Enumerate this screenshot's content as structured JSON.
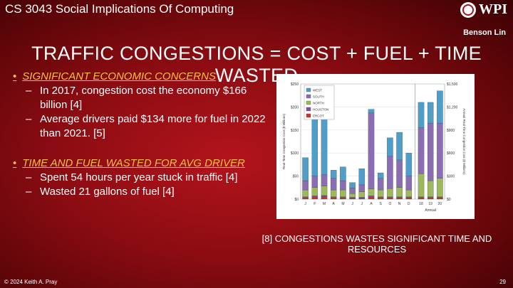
{
  "header": {
    "course": "CS 3043 Social Implications Of Computing",
    "logo_text": "WPI",
    "author": "Benson Lin"
  },
  "title": "TRAFFIC CONGESTIONS = COST + FUEL + TIME WASTED",
  "sections": [
    {
      "heading": "SIGNIFICANT ECONOMIC CONCERNS",
      "items": [
        "In 2017, congestion cost the economy $166 billion [4]",
        "Average drivers paid $134 more for fuel in 2022 than 2021. [5]"
      ]
    },
    {
      "heading": "TIME AND FUEL WASTED FOR AVG DRIVER",
      "items": [
        "Spent 54 hours per year stuck in traffic [4]",
        "Wasted 21 gallons of fuel [4]"
      ]
    }
  ],
  "caption": "[8] CONGESTIONS WASTES SIGNIFICANT TIME AND RESOURCES",
  "footer": {
    "copyright": "© 2024 Keith A. Pray",
    "page": "29"
  },
  "chart_data": {
    "type": "bar",
    "stacked": true,
    "categories": [
      "J",
      "F",
      "M",
      "A",
      "M",
      "J",
      "J",
      "A",
      "S",
      "O",
      "N",
      "D",
      "18",
      "19",
      "20"
    ],
    "xgroup_label": "Annual",
    "ylabel": "Real-Time Congestion Cost ($ Millions)",
    "y2label": "Annual Real-Time Congestion Cost ($ Millions)",
    "ylim": [
      0,
      250
    ],
    "yticks": [
      "$0",
      "$50",
      "$100",
      "$150",
      "$200",
      "$250"
    ],
    "y2lim": [
      0,
      1500
    ],
    "y2ticks": [
      "$0",
      "$300",
      "$600",
      "$900",
      "$1,200",
      "$1,500"
    ],
    "legend_position": "top-left",
    "series": [
      {
        "name": "ERCOT",
        "color": "#c0392b",
        "values": [
          3,
          4,
          5,
          3,
          3,
          2,
          2,
          4,
          3,
          3,
          3,
          3,
          3,
          3,
          3
        ]
      },
      {
        "name": "HOUSTON",
        "color": "#8e44ad",
        "values": [
          2,
          3,
          3,
          2,
          2,
          2,
          2,
          3,
          2,
          2,
          2,
          2,
          2,
          2,
          2
        ]
      },
      {
        "name": "NORTH",
        "color": "#9cba5b",
        "values": [
          15,
          18,
          20,
          15,
          15,
          8,
          12,
          15,
          15,
          18,
          20,
          15,
          50,
          35,
          40
        ]
      },
      {
        "name": "SOUTH",
        "color": "#8b6db3",
        "values": [
          20,
          25,
          25,
          25,
          20,
          12,
          15,
          165,
          25,
          70,
          60,
          30,
          100,
          125,
          120
        ]
      },
      {
        "name": "WEST",
        "color": "#4f9ec9",
        "values": [
          50,
          168,
          168,
          18,
          30,
          12,
          35,
          8,
          12,
          40,
          60,
          50,
          55,
          45,
          70
        ]
      }
    ],
    "series_order_top_to_bottom": [
      "WEST",
      "SOUTH",
      "NORTH",
      "HOUSTON",
      "ERCOT"
    ]
  }
}
